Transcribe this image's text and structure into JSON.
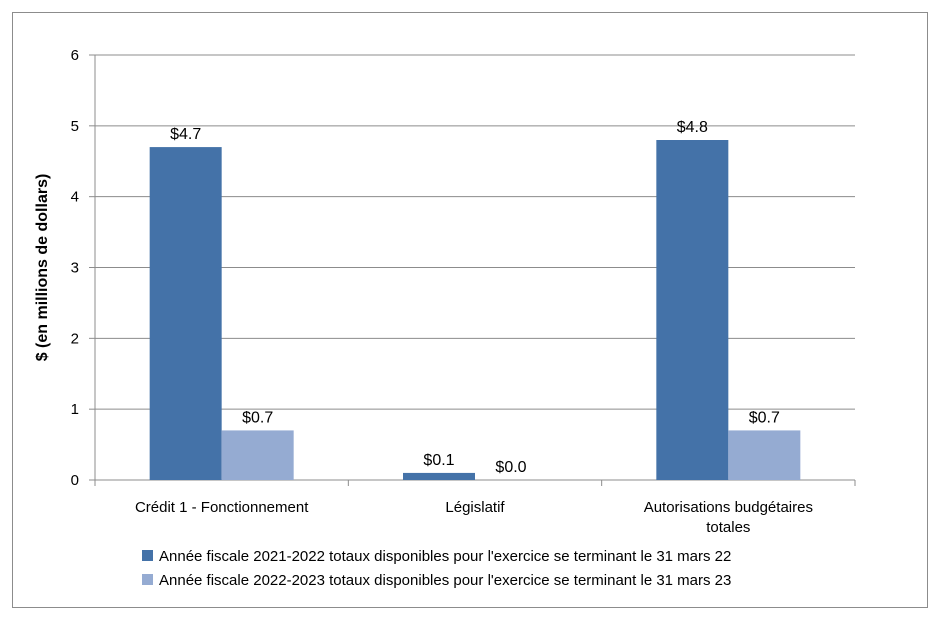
{
  "chart_data": {
    "type": "bar",
    "title": "",
    "xlabel": "",
    "ylabel": "$ (en millions de dollars)",
    "ylim": [
      0,
      6
    ],
    "yticks": [
      0,
      1,
      2,
      3,
      4,
      5,
      6
    ],
    "grid": true,
    "legend_position": "bottom",
    "categories": [
      [
        "Crédit 1 - Fonctionnement"
      ],
      [
        "Législatif"
      ],
      [
        "Autorisations budgétaires",
        "totales"
      ]
    ],
    "series": [
      {
        "name": "Année fiscale 2021-2022 totaux disponibles pour l'exercice se terminant le 31 mars 22",
        "color": "#4472a8",
        "values": [
          4.7,
          0.1,
          4.8
        ],
        "labels": [
          "$4.7",
          "$0.1",
          "$4.8"
        ]
      },
      {
        "name": "Année fiscale 2022-2023 totaux disponibles pour l'exercice se terminant le 31 mars 23",
        "color": "#95abd2",
        "values": [
          0.7,
          0.0,
          0.7
        ],
        "labels": [
          "$0.7",
          "$0.0",
          "$0.7"
        ]
      }
    ]
  }
}
